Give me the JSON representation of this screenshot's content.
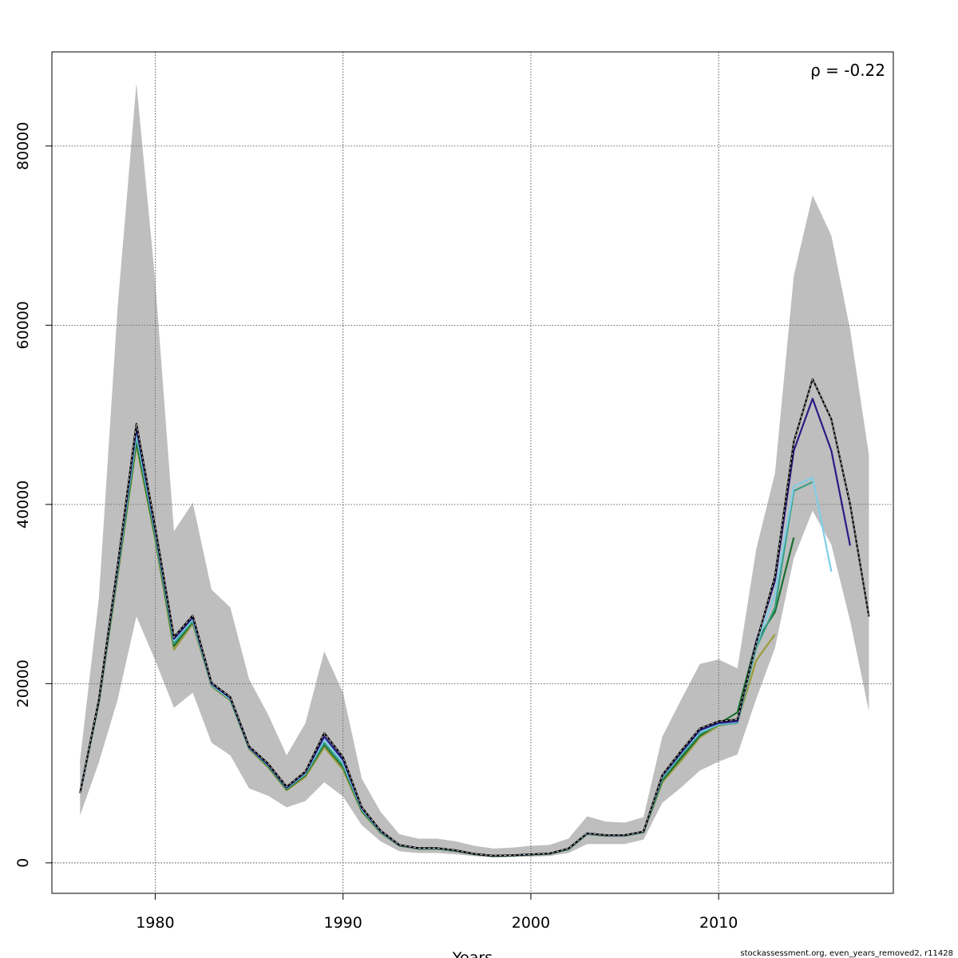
{
  "chart_data": {
    "type": "line",
    "title": "",
    "xlabel": "Years",
    "ylabel": "",
    "xlim": [
      1974.5,
      2019.3
    ],
    "ylim": [
      -3400,
      90500
    ],
    "x_ticks": [
      1980,
      1990,
      2000,
      2010
    ],
    "y_ticks": [
      0,
      20000,
      40000,
      60000,
      80000
    ],
    "x_tick_labels": [
      "1980",
      "1990",
      "2000",
      "2010"
    ],
    "y_tick_labels": [
      "0",
      "20000",
      "40000",
      "60000",
      "80000"
    ],
    "grid": true,
    "annotation": "ρ = -0.22",
    "footer_text": "stockassessment.org, even_years_removed2, r11428",
    "band": {
      "color": "#bebebe",
      "x": [
        1976,
        1977,
        1978,
        1979,
        1980,
        1981,
        1982,
        1983,
        1984,
        1985,
        1986,
        1987,
        1988,
        1989,
        1990,
        1991,
        1992,
        1993,
        1994,
        1995,
        1996,
        1997,
        1998,
        1999,
        2000,
        2001,
        2002,
        2003,
        2004,
        2005,
        2006,
        2007,
        2008,
        2009,
        2010,
        2011,
        2012,
        2013,
        2014,
        2015,
        2016,
        2017,
        2018
      ],
      "upper": [
        11500,
        29500,
        62000,
        87000,
        65000,
        37000,
        40200,
        30500,
        28500,
        20500,
        16600,
        12000,
        15600,
        23600,
        19000,
        9400,
        5700,
        3200,
        2700,
        2700,
        2400,
        1900,
        1600,
        1700,
        1900,
        2000,
        2700,
        5200,
        4600,
        4500,
        5100,
        14100,
        18200,
        22200,
        22700,
        21700,
        35000,
        43500,
        65500,
        74500,
        70000,
        59500,
        45500
      ],
      "lower": [
        5300,
        11200,
        18200,
        27500,
        22600,
        17300,
        19000,
        13400,
        12000,
        8300,
        7500,
        6200,
        6900,
        9000,
        7400,
        4200,
        2400,
        1300,
        1100,
        1100,
        950,
        750,
        600,
        650,
        700,
        760,
        1100,
        2100,
        2100,
        2100,
        2600,
        6700,
        8400,
        10300,
        11300,
        12100,
        18300,
        24000,
        34000,
        39300,
        35500,
        27000,
        16900
      ]
    },
    "series": [
      {
        "color": "#000000",
        "dashed_overlay": true,
        "x": [
          1976,
          1977,
          1978,
          1979,
          1980,
          1981,
          1982,
          1983,
          1984,
          1985,
          1986,
          1987,
          1988,
          1989,
          1990,
          1991,
          1992,
          1993,
          1994,
          1995,
          1996,
          1997,
          1998,
          1999,
          2000,
          2001,
          2002,
          2003,
          2004,
          2005,
          2006,
          2007,
          2008,
          2009,
          2010,
          2011,
          2012,
          2013,
          2014,
          2015,
          2016,
          2017,
          2018
        ],
        "values": [
          7800,
          18200,
          33200,
          49000,
          37500,
          25200,
          27600,
          20100,
          18500,
          13000,
          11100,
          8500,
          10200,
          14500,
          11800,
          6200,
          3600,
          2000,
          1650,
          1650,
          1400,
          1000,
          800,
          850,
          950,
          1050,
          1600,
          3300,
          3100,
          3100,
          3500,
          9800,
          12500,
          15000,
          15800,
          16000,
          24500,
          32000,
          47000,
          54000,
          49500,
          40000,
          27500
        ]
      },
      {
        "color": "#2a1b86",
        "dashed_overlay": false,
        "x": [
          1976,
          1977,
          1978,
          1979,
          1980,
          1981,
          1982,
          1983,
          1984,
          1985,
          1986,
          1987,
          1988,
          1989,
          1990,
          1991,
          1992,
          1993,
          1994,
          1995,
          1996,
          1997,
          1998,
          1999,
          2000,
          2001,
          2002,
          2003,
          2004,
          2005,
          2006,
          2007,
          2008,
          2009,
          2010,
          2011,
          2012,
          2013,
          2014,
          2015,
          2016,
          2017
        ],
        "values": [
          7800,
          18100,
          33000,
          48500,
          37200,
          25000,
          27400,
          20000,
          18400,
          12900,
          11000,
          8400,
          10100,
          14100,
          11500,
          6100,
          3550,
          1980,
          1640,
          1640,
          1390,
          990,
          790,
          840,
          940,
          1040,
          1580,
          3280,
          3080,
          3080,
          3480,
          9700,
          12300,
          14800,
          15600,
          15800,
          24700,
          31500,
          46000,
          51800,
          46000,
          35400
        ]
      },
      {
        "color": "#80cde8",
        "dashed_overlay": false,
        "x": [
          1976,
          1977,
          1978,
          1979,
          1980,
          1981,
          1982,
          1983,
          1984,
          1985,
          1986,
          1987,
          1988,
          1989,
          1990,
          1991,
          1992,
          1993,
          1994,
          1995,
          1996,
          1997,
          1998,
          1999,
          2000,
          2001,
          2002,
          2003,
          2004,
          2005,
          2006,
          2007,
          2008,
          2009,
          2010,
          2011,
          2012,
          2013,
          2014,
          2015,
          2016
        ],
        "values": [
          7800,
          18050,
          32800,
          48000,
          37000,
          24800,
          27200,
          19900,
          18300,
          12850,
          10950,
          8350,
          10000,
          13800,
          11200,
          6000,
          3500,
          1960,
          1620,
          1620,
          1370,
          980,
          780,
          830,
          930,
          1030,
          1560,
          3260,
          3060,
          3060,
          3460,
          9600,
          12200,
          14600,
          15500,
          15700,
          24300,
          30000,
          42000,
          43000,
          32500
        ]
      },
      {
        "color": "#3aa087",
        "dashed_overlay": false,
        "x": [
          1976,
          1977,
          1978,
          1979,
          1980,
          1981,
          1982,
          1983,
          1984,
          1985,
          1986,
          1987,
          1988,
          1989,
          1990,
          1991,
          1992,
          1993,
          1994,
          1995,
          1996,
          1997,
          1998,
          1999,
          2000,
          2001,
          2002,
          2003,
          2004,
          2005,
          2006,
          2007,
          2008,
          2009,
          2010,
          2011,
          2012,
          2013,
          2014,
          2015
        ],
        "values": [
          7800,
          18000,
          32600,
          47500,
          36700,
          24500,
          27000,
          19800,
          18200,
          12800,
          10900,
          8300,
          9900,
          13400,
          10900,
          5900,
          3450,
          1940,
          1600,
          1600,
          1350,
          970,
          770,
          820,
          920,
          1020,
          1540,
          3240,
          3040,
          3040,
          3440,
          9400,
          12000,
          14400,
          15400,
          15600,
          24000,
          28500,
          41500,
          42500
        ]
      },
      {
        "color": "#1a6e2e",
        "dashed_overlay": false,
        "x": [
          1976,
          1977,
          1978,
          1979,
          1980,
          1981,
          1982,
          1983,
          1984,
          1985,
          1986,
          1987,
          1988,
          1989,
          1990,
          1991,
          1992,
          1993,
          1994,
          1995,
          1996,
          1997,
          1998,
          1999,
          2000,
          2001,
          2002,
          2003,
          2004,
          2005,
          2006,
          2007,
          2008,
          2009,
          2010,
          2011,
          2012,
          2013,
          2014
        ],
        "values": [
          7800,
          17900,
          32300,
          47000,
          36400,
          24200,
          26900,
          19800,
          18200,
          12800,
          10800,
          8200,
          9800,
          13200,
          10700,
          5800,
          3400,
          1920,
          1580,
          1580,
          1330,
          960,
          760,
          810,
          910,
          1010,
          1520,
          3220,
          3020,
          3020,
          3420,
          9200,
          11700,
          14200,
          15500,
          16800,
          24700,
          28000,
          36300
        ]
      },
      {
        "color": "#9a9a3a",
        "dashed_overlay": false,
        "x": [
          1976,
          1977,
          1978,
          1979,
          1980,
          1981,
          1982,
          1983,
          1984,
          1985,
          1986,
          1987,
          1988,
          1989,
          1990,
          1991,
          1992,
          1993,
          1994,
          1995,
          1996,
          1997,
          1998,
          1999,
          2000,
          2001,
          2002,
          2003,
          2004,
          2005,
          2006,
          2007,
          2008,
          2009,
          2010,
          2011,
          2012,
          2013
        ],
        "values": [
          7800,
          17800,
          32000,
          46600,
          36100,
          23800,
          26700,
          19700,
          18100,
          12700,
          10700,
          8100,
          9600,
          12900,
          10400,
          5700,
          3350,
          1900,
          1560,
          1560,
          1310,
          950,
          750,
          800,
          900,
          1000,
          1500,
          3200,
          3000,
          3000,
          3400,
          9000,
          11400,
          14000,
          15300,
          15700,
          22600,
          25500
        ]
      }
    ]
  }
}
